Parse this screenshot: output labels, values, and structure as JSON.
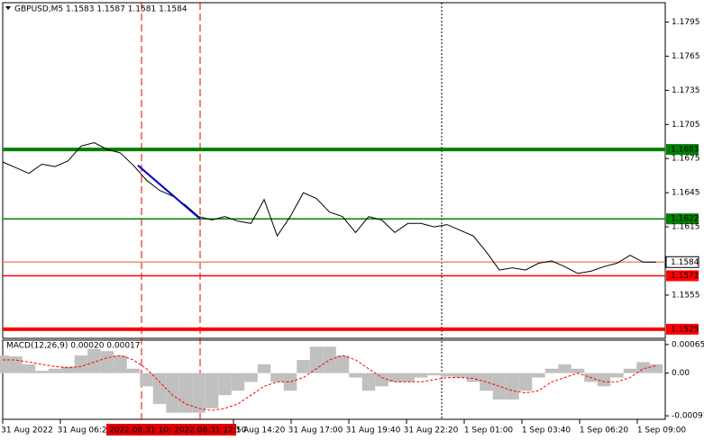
{
  "chart_data": [
    {
      "type": "line",
      "title": "GBPUSD,M5  1.1583 1.1587 1.1581 1.1584",
      "values": [
        1.1672,
        1.1667,
        1.1662,
        1.167,
        1.1668,
        1.1673,
        1.1686,
        1.1689,
        1.1683,
        1.168,
        1.1669,
        1.1656,
        1.1647,
        1.1642,
        1.1634,
        1.1624,
        1.1621,
        1.1624,
        1.162,
        1.1618,
        1.1639,
        1.1607,
        1.1624,
        1.1645,
        1.164,
        1.1628,
        1.1624,
        1.161,
        1.1624,
        1.1621,
        1.161,
        1.1618,
        1.1618,
        1.1615,
        1.1617,
        1.1612,
        1.1607,
        1.1593,
        1.1577,
        1.1579,
        1.1577,
        1.1583,
        1.1585,
        1.158,
        1.1574,
        1.1576,
        1.158,
        1.1583,
        1.159,
        1.1584,
        1.1584
      ],
      "color": "#000000",
      "trend_line": {
        "values": [
          1.1669,
          1.1622
        ],
        "color": "#0000cc"
      },
      "ylim": [
        1.1517,
        1.1812
      ],
      "yticks": [
        1.1795,
        1.1765,
        1.1735,
        1.1705,
        1.1675,
        1.1645,
        1.1615,
        1.1555
      ],
      "levels": [
        {
          "value": 1.1683,
          "color": "#008000",
          "thick": true
        },
        {
          "value": 1.1622,
          "color": "#008000",
          "thick": false
        },
        {
          "value": 1.1584,
          "color": "#e89070",
          "thick": false
        },
        {
          "value": 1.1572,
          "color": "#ff0000",
          "thick": false
        },
        {
          "value": 1.1525,
          "color": "#ff0000",
          "thick": true
        }
      ],
      "x_labels": [
        "31 Aug 2022",
        "31 Aug 06:20",
        null,
        null,
        "31 Aug 14:20",
        "31 Aug 17:00",
        "31 Aug 19:40",
        "31 Aug 22:20",
        "1 Sep 01:00",
        "1 Sep 03:40",
        "1 Sep 06:20",
        "1 Sep 09:00"
      ],
      "cursor_labels": [
        "2022.08.31 10:",
        "2022.08.31 12:50"
      ]
    },
    {
      "type": "bar",
      "title": "MACD(12,26,9) 0.00020 0.00017",
      "values": [
        0.0004,
        0.00038,
        0.0002,
        5e-05,
        0.0001,
        0.00015,
        0.0004,
        0.00055,
        0.0005,
        0.0004,
        0.0001,
        -0.0003,
        -0.0007,
        -0.0009,
        -0.0009,
        -0.0009,
        -0.0008,
        -0.0005,
        -0.0004,
        -0.0002,
        0.0002,
        -0.0002,
        -0.0004,
        0.0003,
        0.0006,
        0.0006,
        0.0004,
        -0.0001,
        -0.0004,
        -0.0003,
        -0.0002,
        -0.0002,
        -0.0001,
        -5e-05,
        -8e-05,
        -0.0001,
        -0.0002,
        -0.0004,
        -0.0006,
        -0.0006,
        -0.0004,
        -0.0001,
        0.0001,
        0.0002,
        0.0001,
        -0.0002,
        -0.0003,
        -0.0001,
        0.0001,
        0.00025,
        0.0002
      ],
      "color": "#c0c0c0",
      "signal": {
        "values": [
          0.0003,
          0.0003,
          0.00025,
          0.0002,
          0.00015,
          0.00012,
          0.00015,
          0.00025,
          0.00035,
          0.0004,
          0.0003,
          0.0001,
          -0.0002,
          -0.0005,
          -0.0007,
          -0.0008,
          -0.00085,
          -0.0008,
          -0.0007,
          -0.0005,
          -0.0003,
          -0.0002,
          -0.0002,
          -0.0001,
          0.0001,
          0.0003,
          0.0004,
          0.0003,
          0.0001,
          -0.0001,
          -0.0002,
          -0.0002,
          -0.0002,
          -0.00015,
          -0.0001,
          -0.0001,
          -0.00012,
          -0.0002,
          -0.0003,
          -0.0004,
          -0.00045,
          -0.0004,
          -0.0002,
          -0.0001,
          0.0,
          -0.0001,
          -0.0002,
          -0.0002,
          -0.0001,
          0.0001,
          0.00017
        ],
        "color": "#ff0000"
      },
      "ylim": [
        -0.00105,
        0.00075
      ],
      "yticks": [
        0.00065,
        {
          "value": 0,
          "label": "0.00"
        },
        -0.00097
      ]
    }
  ]
}
